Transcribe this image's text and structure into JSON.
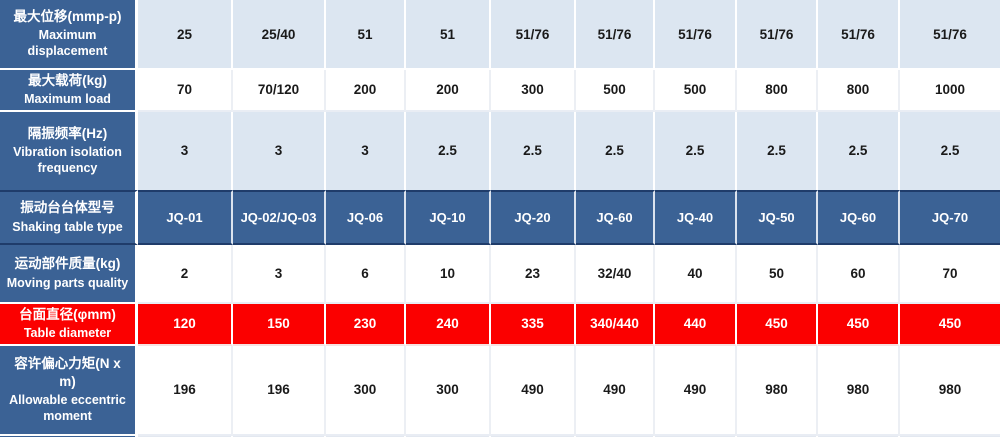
{
  "colors": {
    "header_blue": "#3B6295",
    "navy_border": "#1F3C6A",
    "light_blue": "#DCE6F1",
    "red": "#FB0000",
    "value_text": "#1A1A1A"
  },
  "table": {
    "column_count": 10,
    "rows": [
      {
        "style": "light",
        "header_zh": "最大位移(mmp-p)",
        "header_en": "Maximum displacement",
        "values": [
          "25",
          "25/40",
          "51",
          "51",
          "51/76",
          "51/76",
          "51/76",
          "51/76",
          "51/76",
          "51/76"
        ]
      },
      {
        "style": "white",
        "header_zh": "最大载荷(kg)",
        "header_en": "Maximum load",
        "values": [
          "70",
          "70/120",
          "200",
          "200",
          "300",
          "500",
          "500",
          "800",
          "800",
          "1000"
        ]
      },
      {
        "style": "light",
        "header_zh": "隔振频率(Hz)",
        "header_en": "Vibration isolation frequency",
        "values": [
          "3",
          "3",
          "3",
          "2.5",
          "2.5",
          "2.5",
          "2.5",
          "2.5",
          "2.5",
          "2.5"
        ]
      },
      {
        "style": "blue",
        "header_zh": "振动台台体型号",
        "header_en": "Shaking table type",
        "values": [
          "JQ-01",
          "JQ-02/JQ-03",
          "JQ-06",
          "JQ-10",
          "JQ-20",
          "JQ-60",
          "JQ-40",
          "JQ-50",
          "JQ-60",
          "JQ-70"
        ]
      },
      {
        "style": "white",
        "header_zh": "运动部件质量(kg)",
        "header_en": "Moving parts quality",
        "values": [
          "2",
          "3",
          "6",
          "10",
          "23",
          "32/40",
          "40",
          "50",
          "60",
          "70"
        ]
      },
      {
        "style": "red",
        "header_zh": "台面直径(φmm)",
        "header_en": "Table diameter",
        "values": [
          "120",
          "150",
          "230",
          "240",
          "335",
          "340/440",
          "440",
          "450",
          "450",
          "450"
        ]
      },
      {
        "style": "white",
        "header_zh": "容许偏心力矩(N x m)",
        "header_en": "Allowable eccentric moment",
        "values": [
          "196",
          "196",
          "300",
          "300",
          "490",
          "490",
          "490",
          "980",
          "980",
          "980"
        ]
      },
      {
        "style": "sliver",
        "partial": true,
        "header_zh": "",
        "header_en": "",
        "values": [
          "",
          "",
          "",
          "",
          "",
          "",
          "",
          "",
          "",
          ""
        ]
      }
    ]
  }
}
